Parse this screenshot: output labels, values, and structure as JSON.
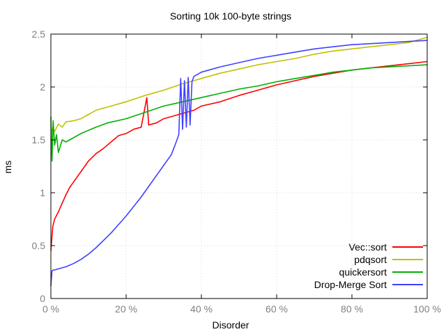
{
  "chart_data": {
    "type": "line",
    "title": "Sorting 10k 100-byte strings",
    "xlabel": "Disorder",
    "ylabel": "ms",
    "xlim": [
      0,
      100
    ],
    "ylim": [
      0,
      2.5
    ],
    "xticks": [
      0,
      20,
      40,
      60,
      80,
      100
    ],
    "xtick_labels": [
      "0 %",
      "20 %",
      "40 %",
      "60 %",
      "80 %",
      "100 %"
    ],
    "yticks": [
      0,
      0.5,
      1,
      1.5,
      2,
      2.5
    ],
    "ytick_labels": [
      "0",
      "0.5",
      "1",
      "1.5",
      "2",
      "2.5"
    ],
    "grid": true,
    "legend_position": "bottom-right",
    "series": [
      {
        "name": "Vec::sort",
        "color": "#ff0000",
        "x": [
          0,
          0.5,
          1,
          2,
          3,
          4,
          5,
          6,
          8,
          10,
          12,
          14,
          16,
          18,
          20,
          22,
          24,
          25.5,
          26,
          28,
          30,
          32,
          34,
          36,
          38,
          40,
          45,
          50,
          55,
          60,
          65,
          70,
          75,
          80,
          85,
          90,
          95,
          100
        ],
        "y": [
          0.45,
          0.68,
          0.75,
          0.82,
          0.9,
          0.98,
          1.05,
          1.1,
          1.2,
          1.3,
          1.37,
          1.42,
          1.48,
          1.54,
          1.56,
          1.6,
          1.62,
          1.9,
          1.64,
          1.66,
          1.7,
          1.72,
          1.74,
          1.76,
          1.78,
          1.82,
          1.86,
          1.92,
          1.97,
          2.02,
          2.06,
          2.1,
          2.13,
          2.16,
          2.18,
          2.2,
          2.22,
          2.24
        ]
      },
      {
        "name": "pdqsort",
        "color": "#c0c000",
        "x": [
          0,
          0.5,
          1,
          2,
          3,
          4,
          6,
          8,
          10,
          12,
          14,
          16,
          18,
          20,
          25,
          30,
          35,
          40,
          45,
          50,
          55,
          60,
          65,
          70,
          75,
          80,
          85,
          90,
          95,
          100
        ],
        "y": [
          1.55,
          1.62,
          1.58,
          1.65,
          1.62,
          1.67,
          1.68,
          1.7,
          1.74,
          1.78,
          1.8,
          1.82,
          1.84,
          1.86,
          1.92,
          1.97,
          2.03,
          2.08,
          2.13,
          2.17,
          2.21,
          2.24,
          2.27,
          2.31,
          2.34,
          2.36,
          2.38,
          2.4,
          2.42,
          2.47
        ]
      },
      {
        "name": "quickersort",
        "color": "#00b000",
        "x": [
          0,
          0.3,
          0.6,
          1,
          1.5,
          2,
          3,
          4,
          6,
          8,
          10,
          12,
          15,
          20,
          25,
          30,
          35,
          40,
          45,
          50,
          55,
          60,
          65,
          70,
          75,
          80,
          85,
          90,
          95,
          100
        ],
        "y": [
          1.72,
          1.3,
          1.68,
          1.45,
          1.55,
          1.38,
          1.5,
          1.48,
          1.52,
          1.56,
          1.59,
          1.62,
          1.66,
          1.7,
          1.76,
          1.82,
          1.86,
          1.9,
          1.94,
          1.98,
          2.01,
          2.05,
          2.08,
          2.11,
          2.14,
          2.16,
          2.18,
          2.19,
          2.2,
          2.21
        ]
      },
      {
        "name": "Drop-Merge Sort",
        "color": "#4040ff",
        "x": [
          0,
          0.3,
          0.6,
          1,
          2,
          4,
          6,
          8,
          10,
          12,
          14,
          16,
          18,
          20,
          22,
          24,
          26,
          28,
          30,
          32,
          33,
          34,
          34.5,
          35,
          35.5,
          36,
          36.5,
          37,
          37.5,
          38,
          40,
          42,
          45,
          50,
          55,
          60,
          65,
          70,
          75,
          80,
          85,
          90,
          95,
          100
        ],
        "y": [
          0.12,
          0.26,
          0.27,
          0.27,
          0.28,
          0.3,
          0.33,
          0.37,
          0.42,
          0.48,
          0.55,
          0.62,
          0.7,
          0.78,
          0.87,
          0.96,
          1.06,
          1.16,
          1.26,
          1.36,
          1.45,
          1.55,
          2.08,
          1.6,
          2.06,
          1.62,
          2.09,
          1.64,
          2.05,
          2.1,
          2.14,
          2.16,
          2.19,
          2.23,
          2.27,
          2.3,
          2.33,
          2.36,
          2.38,
          2.4,
          2.41,
          2.42,
          2.43,
          2.44
        ]
      }
    ]
  }
}
